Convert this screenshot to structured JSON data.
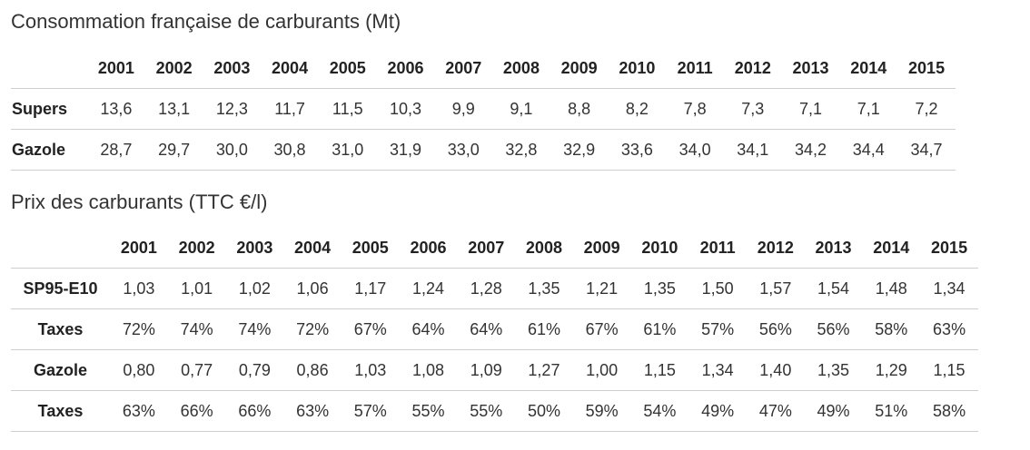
{
  "table1": {
    "title": "Consommation française de carburants (Mt)",
    "years": [
      "2001",
      "2002",
      "2003",
      "2004",
      "2005",
      "2006",
      "2007",
      "2008",
      "2009",
      "2010",
      "2011",
      "2012",
      "2013",
      "2014",
      "2015"
    ],
    "rows": [
      {
        "label": "Supers",
        "values": [
          "13,6",
          "13,1",
          "12,3",
          "11,7",
          "11,5",
          "10,3",
          "9,9",
          "9,1",
          "8,8",
          "8,2",
          "7,8",
          "7,3",
          "7,1",
          "7,1",
          "7,2"
        ]
      },
      {
        "label": "Gazole",
        "values": [
          "28,7",
          "29,7",
          "30,0",
          "30,8",
          "31,0",
          "31,9",
          "33,0",
          "32,8",
          "32,9",
          "33,6",
          "34,0",
          "34,1",
          "34,2",
          "34,4",
          "34,7"
        ]
      }
    ]
  },
  "table2": {
    "title": "Prix des carburants (TTC €/l)",
    "years": [
      "2001",
      "2002",
      "2003",
      "2004",
      "2005",
      "2006",
      "2007",
      "2008",
      "2009",
      "2010",
      "2011",
      "2012",
      "2013",
      "2014",
      "2015"
    ],
    "rows": [
      {
        "label": "SP95-E10",
        "values": [
          "1,03",
          "1,01",
          "1,02",
          "1,06",
          "1,17",
          "1,24",
          "1,28",
          "1,35",
          "1,21",
          "1,35",
          "1,50",
          "1,57",
          "1,54",
          "1,48",
          "1,34"
        ]
      },
      {
        "label": "Taxes",
        "values": [
          "72%",
          "74%",
          "74%",
          "72%",
          "67%",
          "64%",
          "64%",
          "61%",
          "67%",
          "61%",
          "57%",
          "56%",
          "56%",
          "58%",
          "63%"
        ]
      },
      {
        "label": "Gazole",
        "values": [
          "0,80",
          "0,77",
          "0,79",
          "0,86",
          "1,03",
          "1,08",
          "1,09",
          "1,27",
          "1,00",
          "1,15",
          "1,34",
          "1,40",
          "1,35",
          "1,29",
          "1,15"
        ]
      },
      {
        "label": "Taxes",
        "values": [
          "63%",
          "66%",
          "66%",
          "63%",
          "57%",
          "55%",
          "55%",
          "50%",
          "59%",
          "54%",
          "49%",
          "47%",
          "49%",
          "51%",
          "58%"
        ]
      }
    ]
  }
}
